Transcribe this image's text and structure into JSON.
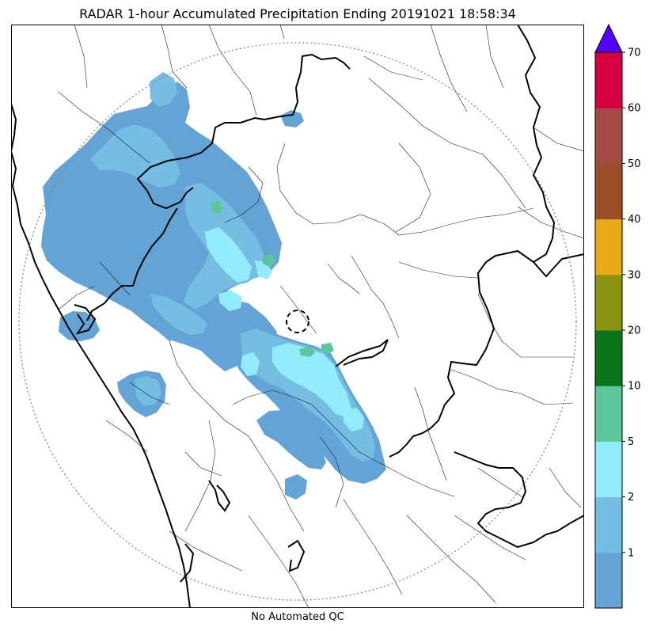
{
  "title": "RADAR 1-hour Accumulated Precipitation Ending 20191021 18:58:34",
  "footer": "No Automated QC",
  "colorbar": {
    "levels": [
      0,
      1,
      2,
      5,
      10,
      20,
      30,
      40,
      50,
      60,
      70
    ],
    "tick_labels": [
      "1",
      "2",
      "5",
      "10",
      "20",
      "30",
      "40",
      "50",
      "60",
      "70"
    ],
    "colors": [
      "#63a3d6",
      "#76bde3",
      "#92ecfb",
      "#5dc59c",
      "#0b731a",
      "#8a9411",
      "#e8aa19",
      "#9a4e27",
      "#a44a42",
      "#d5003f"
    ],
    "extend_color": "#5200ff"
  },
  "colors": {
    "coastline": "#000000",
    "state_border": "#000000",
    "district_border": "#222222",
    "range_ring": "#888888"
  }
}
